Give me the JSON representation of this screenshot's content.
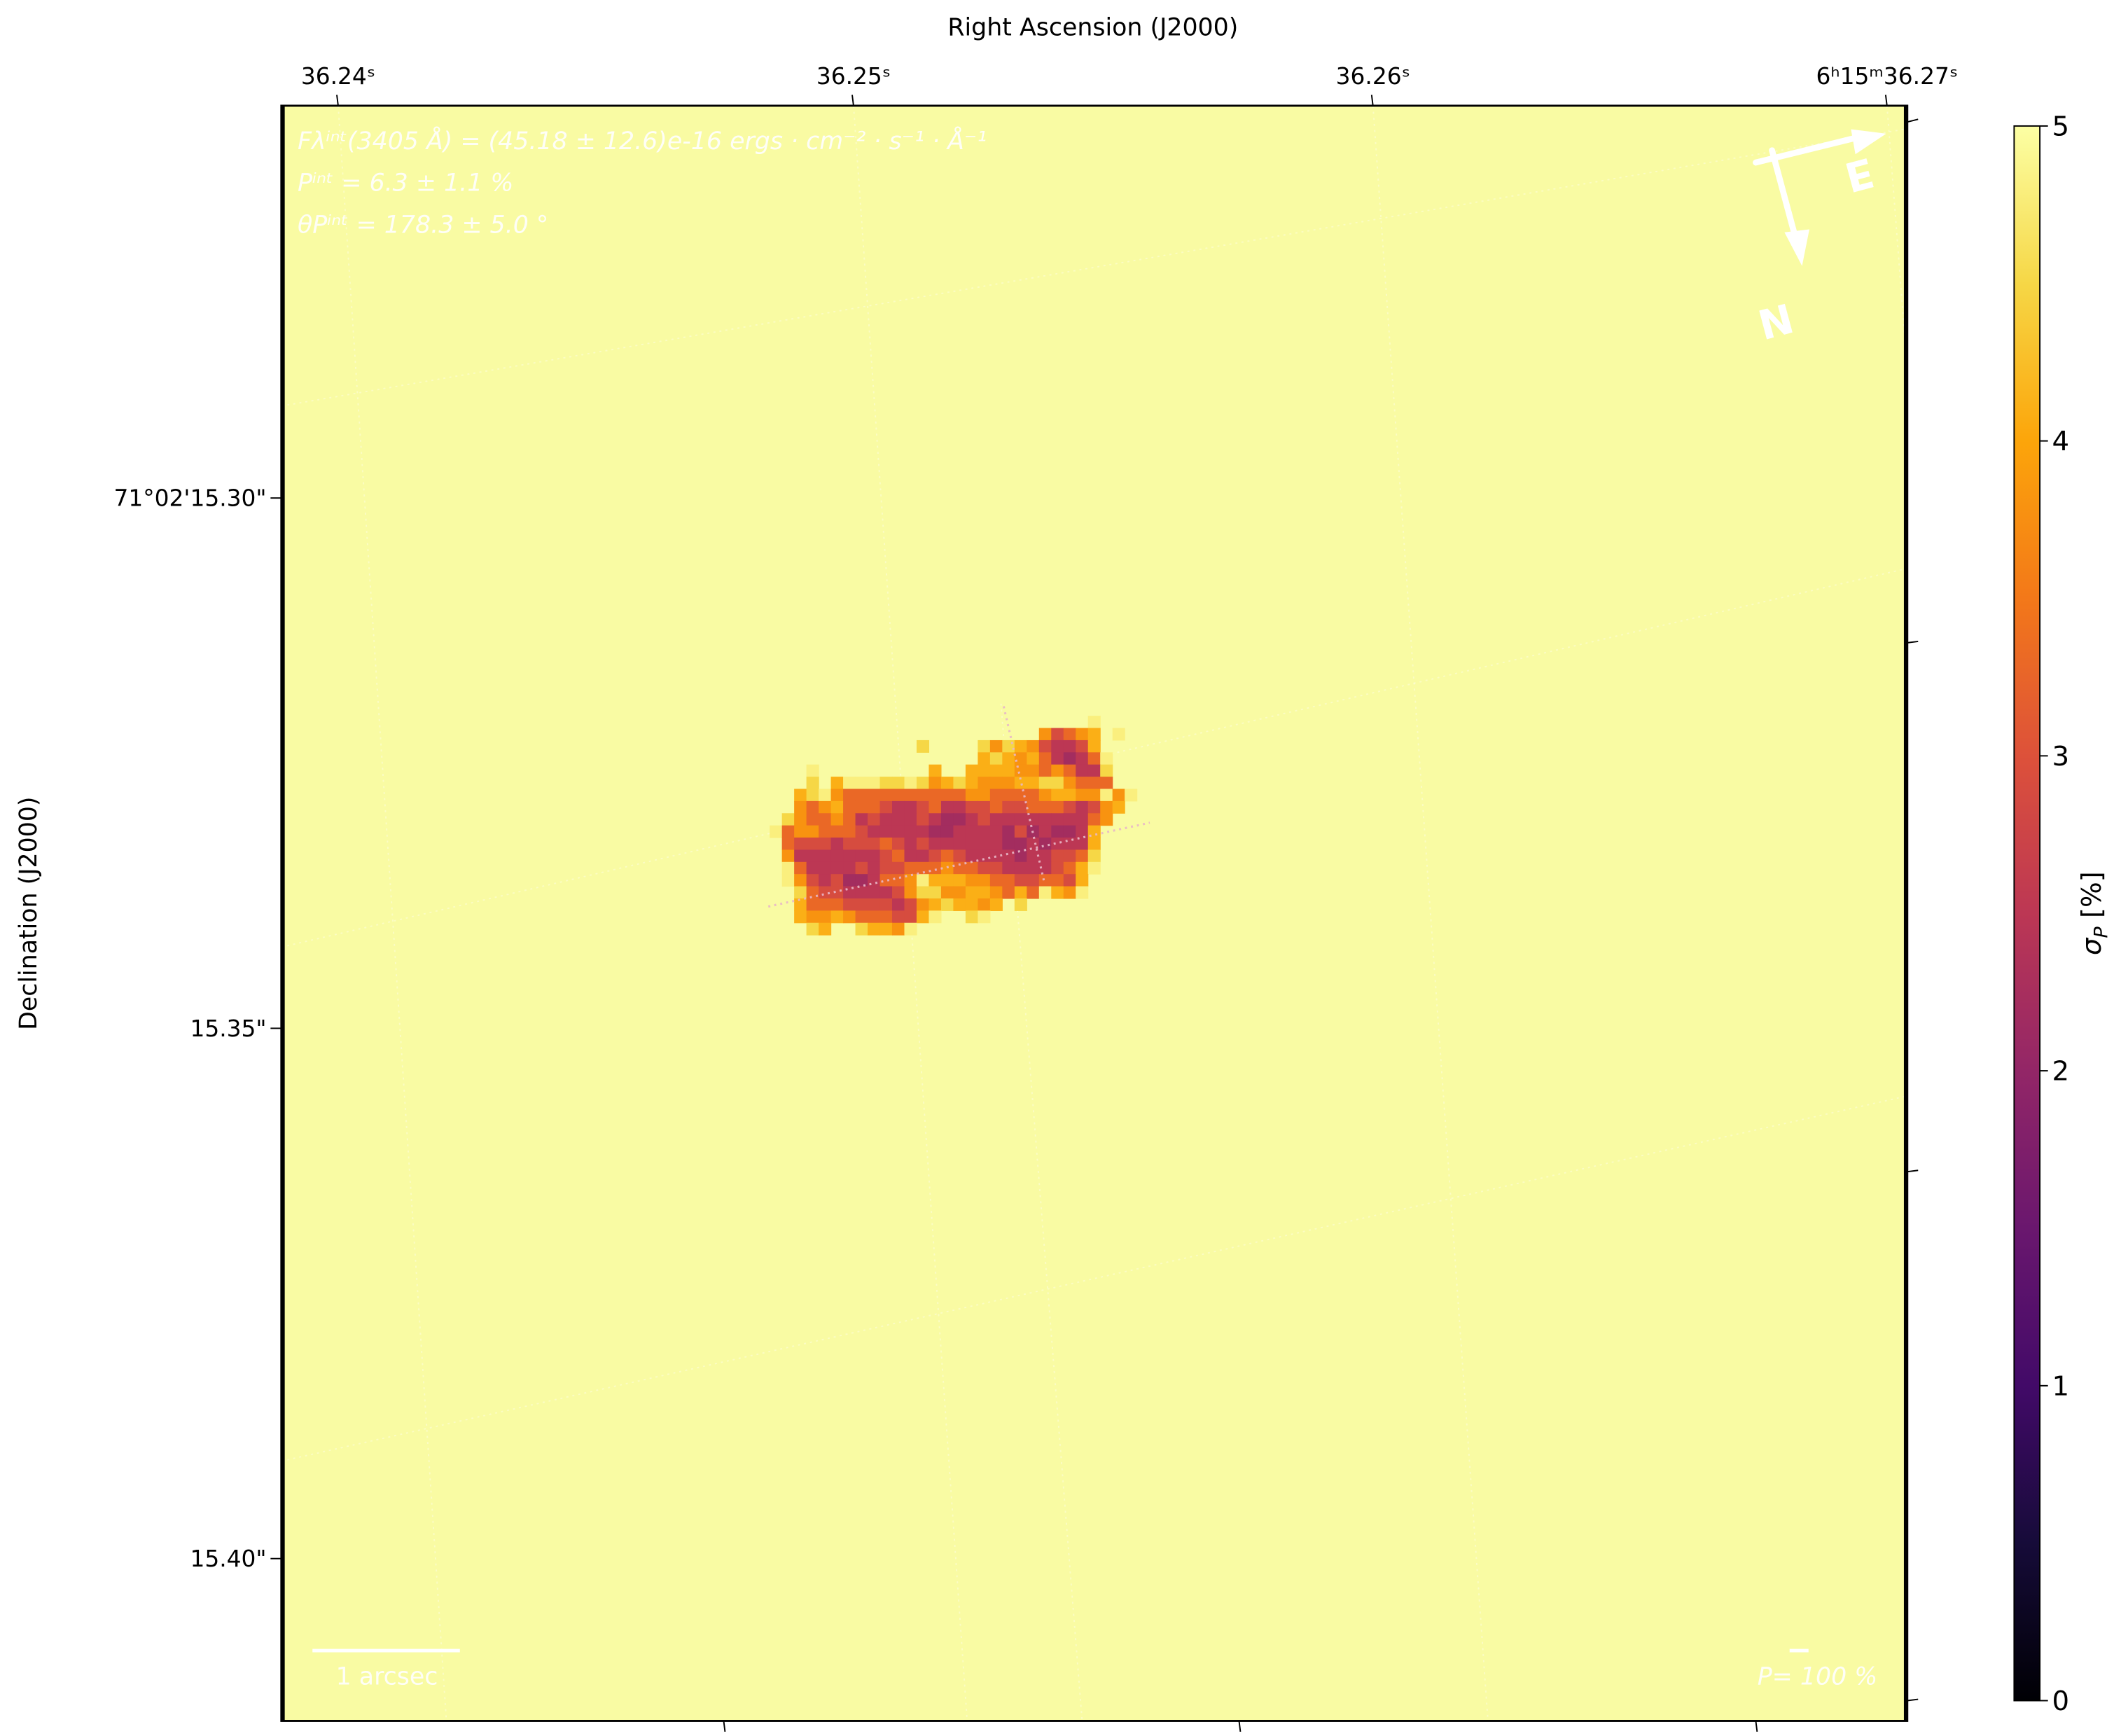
{
  "chart_data": {
    "type": "heatmap",
    "xlabel": "Right Ascension (J2000)",
    "ylabel": "Declination (J2000)",
    "x_tick_labels": [
      "36.24ˢ",
      "36.25ˢ",
      "36.26ˢ",
      "6ʰ15ᵐ36.27ˢ"
    ],
    "y_tick_labels": [
      "71°02'15.30\"",
      "15.35\"",
      "15.40\""
    ],
    "colormap": "inferno",
    "background_value": 5,
    "colorbar": {
      "label_main": "σ",
      "label_sub": "P",
      "label_unit": " [%]",
      "range": [
        0,
        5
      ],
      "ticks": [
        "0",
        "1",
        "2",
        "3",
        "4",
        "5"
      ]
    },
    "annotations": {
      "flux": "Fλⁱⁿᵗ(3405 Å) = (45.18 ± 12.6)e-16 ergs · cm⁻² · s⁻¹ · Å⁻¹",
      "pol_degree": "Pⁱⁿᵗ = 6.3 ± 1.1 %",
      "pol_angle": "θPⁱⁿᵗ = 178.3 ± 5.0 °"
    },
    "scale_bar_label": "1 arcsec",
    "vector_scale_label": "P= 100 %",
    "compass": {
      "north": "N",
      "east": "E"
    },
    "grid": false,
    "values": [
      [
        null,
        null,
        null,
        null,
        null,
        null,
        null,
        null,
        null,
        null,
        null,
        null,
        null,
        null,
        null,
        null,
        null,
        null,
        null,
        null,
        null,
        null,
        null,
        null,
        null,
        null,
        4.8,
        null,
        null,
        null,
        null
      ],
      [
        null,
        null,
        null,
        null,
        null,
        null,
        null,
        null,
        null,
        null,
        null,
        null,
        null,
        null,
        null,
        null,
        null,
        null,
        null,
        null,
        null,
        null,
        3.8,
        2.9,
        3.3,
        3.8,
        4.1,
        null,
        4.8,
        null,
        null
      ],
      [
        null,
        null,
        null,
        null,
        null,
        null,
        null,
        null,
        null,
        null,
        null,
        null,
        4.5,
        null,
        null,
        null,
        null,
        4.5,
        3.8,
        4.5,
        4.1,
        3.8,
        2.9,
        2.5,
        2.5,
        2.9,
        4.1,
        null,
        null,
        null,
        null
      ],
      [
        null,
        null,
        null,
        null,
        null,
        null,
        null,
        null,
        null,
        null,
        null,
        null,
        null,
        null,
        null,
        null,
        null,
        4.1,
        4.5,
        4.1,
        3.8,
        4.1,
        3.3,
        2.5,
        2.2,
        2.5,
        3.3,
        4.8,
        null,
        null,
        null
      ],
      [
        null,
        null,
        null,
        4.8,
        null,
        null,
        null,
        null,
        null,
        null,
        null,
        null,
        null,
        4.1,
        null,
        null,
        4.1,
        4.1,
        4.1,
        4.1,
        3.8,
        3.8,
        3.3,
        3.8,
        3.3,
        2.5,
        2.5,
        4.5,
        null,
        null,
        null
      ],
      [
        null,
        null,
        null,
        4.5,
        null,
        4.1,
        4.8,
        4.8,
        4.8,
        4.5,
        4.5,
        4.8,
        4.5,
        3.8,
        4.1,
        4.5,
        4.1,
        3.8,
        3.8,
        3.8,
        4.1,
        4.1,
        4.5,
        4.5,
        3.8,
        3.3,
        3.3,
        3.3,
        null,
        null,
        null
      ],
      [
        null,
        null,
        4.1,
        4.5,
        4.8,
        3.8,
        3.3,
        3.3,
        3.3,
        3.3,
        3.3,
        3.3,
        3.3,
        3.3,
        3.3,
        3.3,
        3.8,
        3.8,
        3.3,
        3.3,
        3.3,
        3.3,
        3.8,
        4.1,
        4.1,
        3.8,
        3.8,
        4.8,
        3.8,
        4.8,
        null
      ],
      [
        null,
        null,
        3.8,
        3.3,
        3.8,
        4.1,
        3.3,
        3.3,
        3.3,
        2.9,
        2.5,
        2.5,
        2.9,
        3.3,
        2.5,
        2.5,
        2.9,
        2.9,
        3.3,
        2.9,
        2.9,
        3.3,
        3.3,
        3.3,
        2.9,
        2.5,
        2.9,
        3.8,
        4.1,
        null,
        null
      ],
      [
        null,
        4.5,
        3.8,
        3.3,
        3.3,
        3.8,
        3.3,
        2.5,
        2.9,
        2.5,
        2.5,
        2.5,
        2.9,
        2.5,
        2.2,
        2.2,
        2.5,
        2.9,
        2.5,
        2.5,
        2.5,
        2.5,
        2.5,
        2.5,
        2.5,
        2.5,
        3.3,
        3.8,
        null,
        null,
        null
      ],
      [
        4.8,
        3.3,
        3.8,
        3.8,
        3.3,
        3.3,
        3.3,
        2.9,
        2.5,
        2.5,
        2.5,
        2.5,
        2.5,
        2.2,
        2.2,
        2.5,
        2.5,
        2.5,
        2.5,
        2.2,
        2.9,
        2.2,
        2.5,
        2.2,
        2.2,
        2.5,
        4.1,
        null,
        null,
        null,
        null
      ],
      [
        null,
        3.3,
        2.9,
        2.9,
        2.9,
        2.5,
        2.9,
        2.9,
        2.9,
        3.3,
        2.9,
        2.5,
        2.9,
        2.5,
        2.5,
        2.5,
        2.5,
        2.5,
        2.5,
        2.2,
        2.2,
        2.5,
        2.2,
        2.5,
        2.5,
        2.5,
        4.1,
        null,
        null,
        null,
        null
      ],
      [
        null,
        3.8,
        2.5,
        2.5,
        2.5,
        2.5,
        2.5,
        2.5,
        2.5,
        2.9,
        3.3,
        2.5,
        2.5,
        2.9,
        3.3,
        2.9,
        2.5,
        2.5,
        2.5,
        2.5,
        2.2,
        2.5,
        2.5,
        2.9,
        2.9,
        3.3,
        4.5,
        null,
        null,
        null,
        null
      ],
      [
        null,
        4.8,
        3.3,
        2.5,
        2.5,
        2.5,
        2.5,
        2.9,
        2.5,
        2.9,
        2.9,
        3.3,
        3.3,
        3.3,
        3.8,
        3.3,
        3.3,
        2.9,
        2.9,
        2.5,
        2.5,
        2.5,
        2.5,
        2.9,
        3.3,
        4.1,
        4.8,
        null,
        null,
        null,
        null
      ],
      [
        null,
        4.8,
        3.8,
        2.9,
        2.5,
        2.9,
        2.2,
        2.2,
        2.5,
        3.3,
        3.3,
        3.8,
        4.8,
        4.1,
        4.1,
        4.1,
        3.8,
        3.8,
        3.3,
        3.3,
        2.9,
        2.9,
        3.3,
        3.3,
        2.9,
        4.1,
        null,
        null,
        null,
        null,
        null
      ],
      [
        null,
        null,
        4.5,
        3.3,
        2.9,
        2.9,
        2.5,
        2.5,
        2.5,
        2.5,
        2.9,
        3.8,
        4.5,
        4.5,
        3.8,
        3.8,
        4.1,
        4.1,
        3.8,
        3.3,
        4.1,
        3.3,
        4.8,
        4.1,
        3.8,
        4.8,
        null,
        null,
        null,
        null,
        null
      ],
      [
        null,
        null,
        4.1,
        3.3,
        3.3,
        3.3,
        2.9,
        2.9,
        2.9,
        2.9,
        2.5,
        2.9,
        3.8,
        4.1,
        4.5,
        4.1,
        4.1,
        3.8,
        4.1,
        null,
        4.5,
        null,
        null,
        null,
        null,
        null,
        null,
        null,
        null,
        null,
        null
      ],
      [
        null,
        null,
        4.1,
        3.8,
        3.8,
        4.1,
        3.8,
        3.3,
        3.3,
        3.3,
        2.9,
        2.9,
        4.1,
        4.8,
        null,
        null,
        4.5,
        4.8,
        null,
        null,
        null,
        null,
        null,
        null,
        null,
        null,
        null,
        null,
        null,
        null,
        null
      ],
      [
        null,
        null,
        null,
        4.5,
        4.1,
        null,
        null,
        4.5,
        4.1,
        4.1,
        3.8,
        4.8,
        null,
        null,
        null,
        null,
        null,
        null,
        null,
        null,
        null,
        null,
        null,
        null,
        null,
        null,
        null,
        null,
        null,
        null,
        null
      ]
    ]
  }
}
